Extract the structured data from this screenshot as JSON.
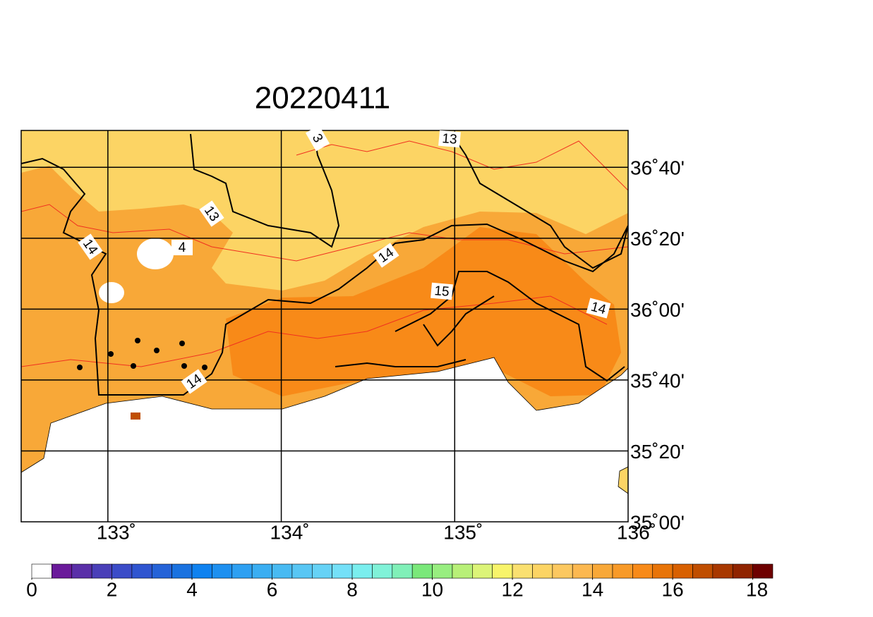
{
  "map": {
    "title": "20220411",
    "xlim": [
      132.5,
      136
    ],
    "ylim": [
      35,
      36.84
    ],
    "xticks": [
      {
        "value": 133,
        "label": "133˚"
      },
      {
        "value": 134,
        "label": "134˚"
      },
      {
        "value": 135,
        "label": "135˚"
      },
      {
        "value": 136,
        "label": "136˚"
      }
    ],
    "yticks": [
      {
        "value": 35,
        "label": "35˚00'"
      },
      {
        "value": 35.3333,
        "label": "35˚20'"
      },
      {
        "value": 35.6667,
        "label": "35˚40'"
      },
      {
        "value": 36,
        "label": "36˚00'"
      },
      {
        "value": 36.3333,
        "label": "36˚20'"
      },
      {
        "value": 36.6667,
        "label": "36˚40'"
      }
    ],
    "contour_labels": [
      "3",
      13,
      13,
      14,
      "4",
      14,
      15,
      14,
      14
    ],
    "colorbar": {
      "lim": [
        0,
        18.5
      ],
      "ticks": [
        0,
        2,
        4,
        6,
        8,
        10,
        12,
        14,
        16,
        18
      ],
      "colors": [
        "#ffffff",
        "#6a1a9a",
        "#5a2fa8",
        "#4a3fb8",
        "#3b4cc8",
        "#2f55d0",
        "#2563d8",
        "#1a72e0",
        "#0f82f0",
        "#1e90f0",
        "#2ea0f2",
        "#3aaef2",
        "#48baf2",
        "#58c6f4",
        "#66d2f6",
        "#74e0f8",
        "#7aeeee",
        "#80f2d8",
        "#80f0b8",
        "#7ae87a",
        "#98ee80",
        "#b8f078",
        "#dcf478",
        "#f8f46a",
        "#fae070",
        "#fcd464",
        "#fcc860",
        "#fcb850",
        "#f8a838",
        "#f89a28",
        "#f88a18",
        "#e87408",
        "#d86000",
        "#c04e00",
        "#a83800",
        "#902400",
        "#6e0000"
      ]
    }
  }
}
